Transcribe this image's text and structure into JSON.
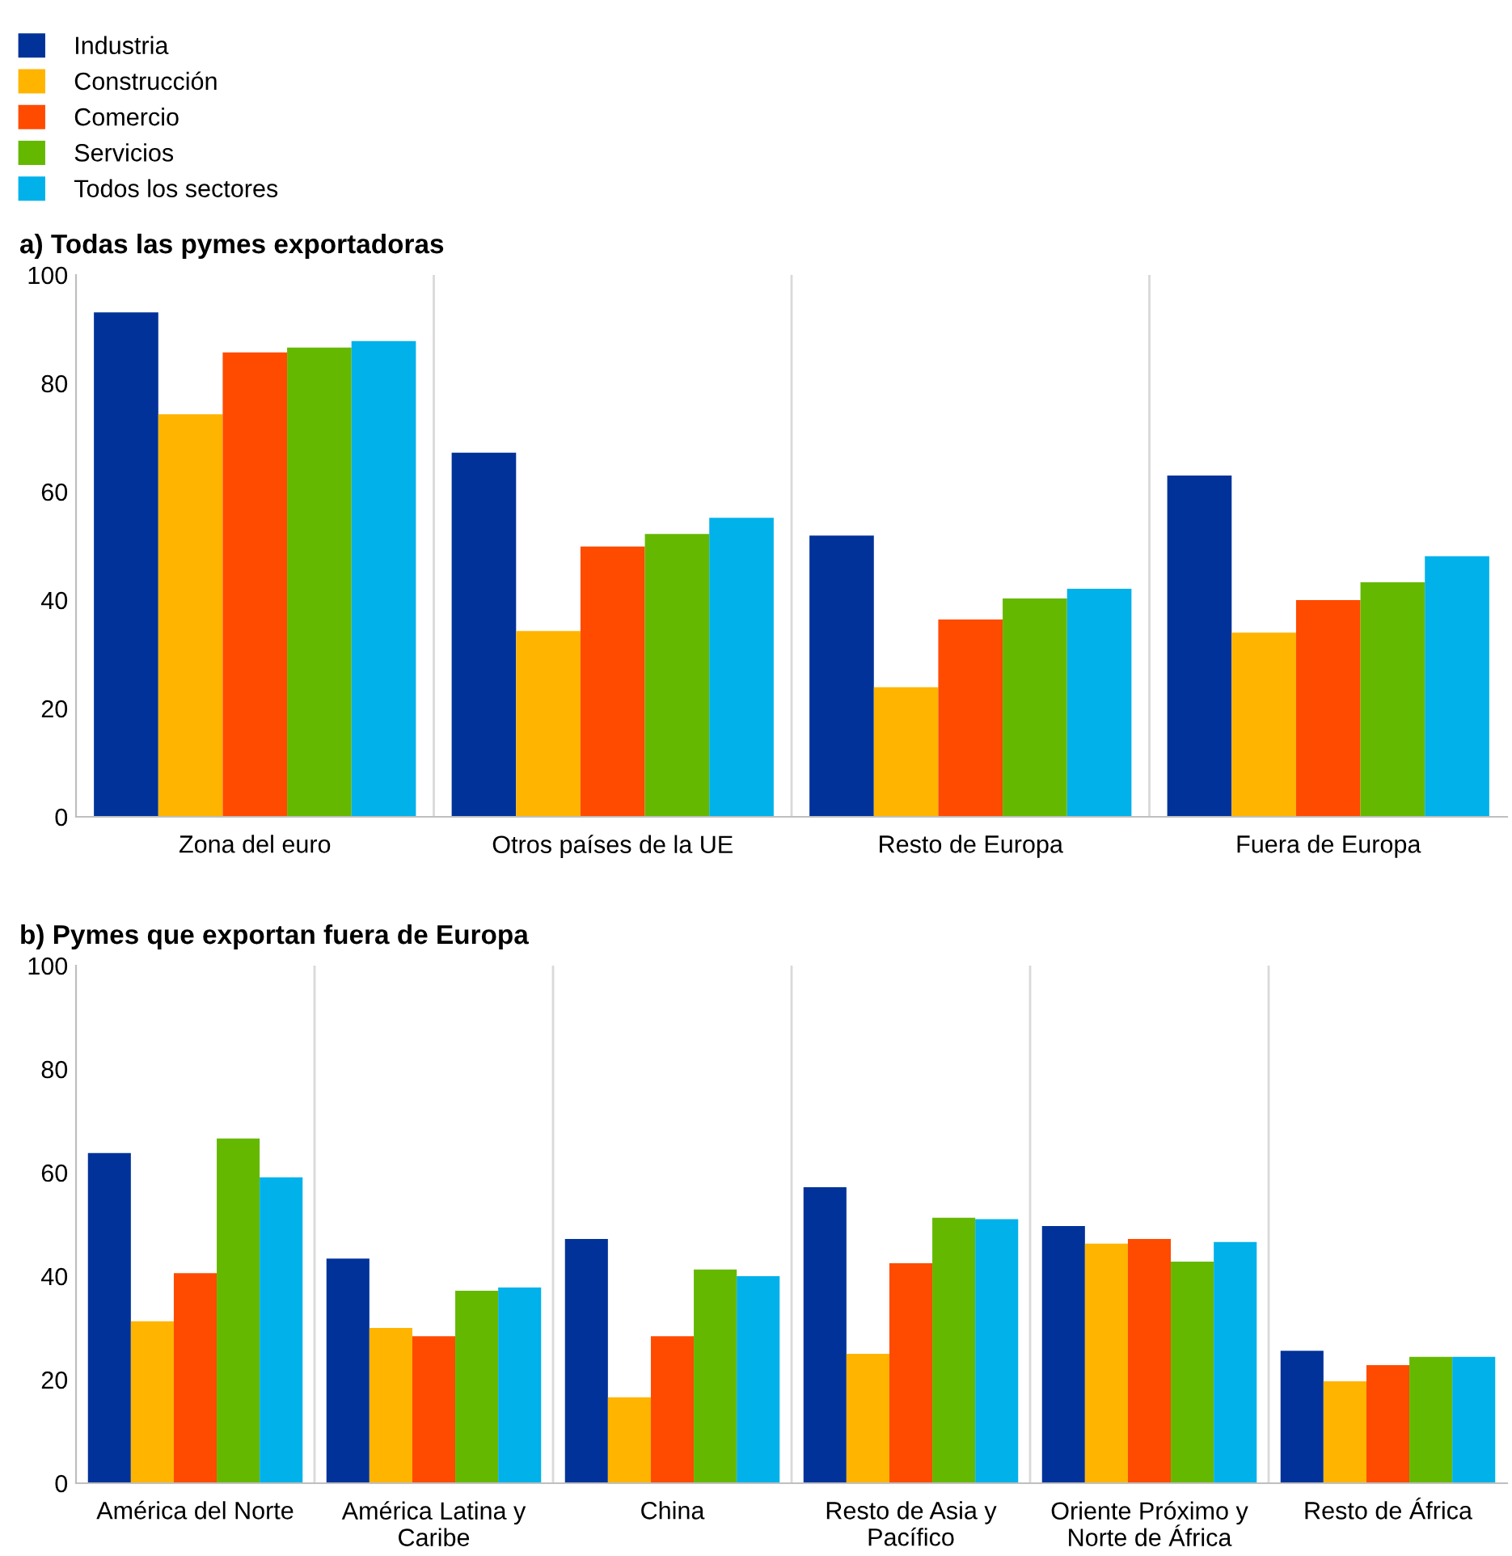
{
  "chart_data": [
    {
      "type": "bar",
      "title": "a) Todas las pymes exportadoras",
      "categories": [
        "Zona del euro",
        "Otros países de la UE",
        "Resto de Europa",
        "Fuera de Europa"
      ],
      "series": [
        {
          "name": "Industria",
          "color": "#003299",
          "values": [
            93.1,
            67.2,
            51.9,
            63.0
          ]
        },
        {
          "name": "Construcción",
          "color": "#ffb400",
          "values": [
            74.3,
            34.3,
            23.9,
            34.0
          ]
        },
        {
          "name": "Comercio",
          "color": "#ff4b00",
          "values": [
            85.7,
            49.9,
            36.4,
            40.0
          ]
        },
        {
          "name": "Servicios",
          "color": "#65b800",
          "values": [
            86.6,
            52.2,
            40.3,
            43.3
          ]
        },
        {
          "name": "Todos los sectores",
          "color": "#00b1ea",
          "values": [
            87.8,
            55.2,
            42.1,
            48.1
          ]
        }
      ],
      "ylim": [
        0,
        100
      ],
      "yticks": [
        0,
        20,
        40,
        60,
        80,
        100
      ],
      "grid": "x",
      "legend": "top left"
    },
    {
      "type": "bar",
      "title": "b) Pymes que exportan fuera de Europa",
      "categories": [
        "América del Norte",
        "América Latina y\nCaribe",
        "China",
        "Resto de Asia y\nPacífico",
        "Oriente Próximo y\nNorte de África",
        "Resto de África"
      ],
      "series": [
        {
          "color": "#003299",
          "values": [
            63.8,
            43.4,
            47.2,
            57.2,
            49.7,
            25.6
          ]
        },
        {
          "color": "#ffb400",
          "values": [
            31.3,
            30.0,
            16.6,
            25.0,
            46.3,
            19.7
          ]
        },
        {
          "color": "#ff4b00",
          "values": [
            40.6,
            28.4,
            28.4,
            42.5,
            47.2,
            22.8
          ]
        },
        {
          "color": "#65b800",
          "values": [
            66.6,
            37.2,
            41.3,
            51.3,
            42.8,
            24.4
          ]
        },
        {
          "color": "#00b1ea",
          "values": [
            59.1,
            37.8,
            40.0,
            51.0,
            46.6,
            24.4
          ]
        }
      ],
      "ylim": [
        0,
        100
      ],
      "yticks": [
        0,
        20,
        40,
        60,
        80,
        100
      ],
      "grid": "x"
    }
  ]
}
